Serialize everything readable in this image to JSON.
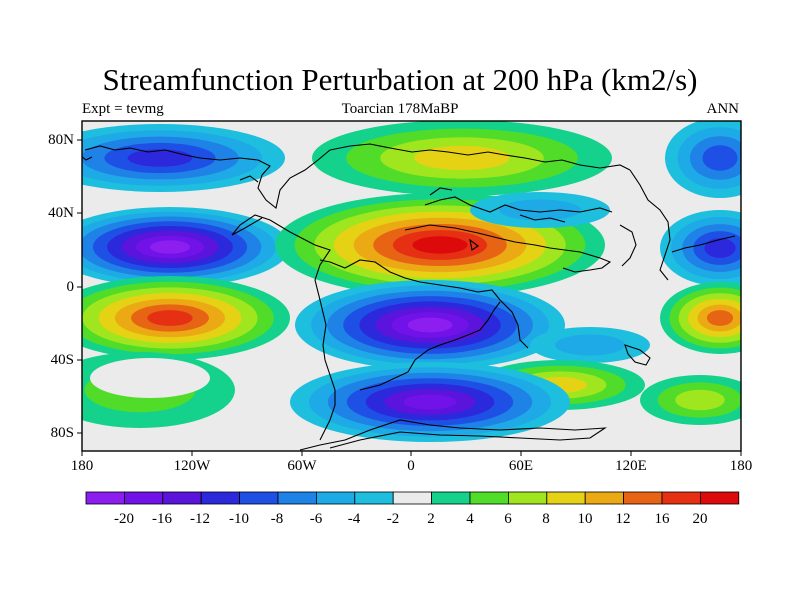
{
  "title": "Streamfunction Perturbation at 200 hPa (km2/s)",
  "subtitle_left": "Expt = tevmg",
  "subtitle_center": "Toarcian 178MaBP",
  "subtitle_right": "ANN",
  "y_tick_labels": [
    "80N",
    "40N",
    "0",
    "40S",
    "80S"
  ],
  "x_tick_labels": [
    "180",
    "120W",
    "60W",
    "0",
    "60E",
    "120E",
    "180"
  ],
  "colorbar_labels": [
    "-20",
    "-16",
    "-12",
    "-10",
    "-8",
    "-6",
    "-4",
    "-2",
    "2",
    "4",
    "6",
    "8",
    "10",
    "12",
    "16",
    "20"
  ],
  "colorbar_colors": [
    "#8c1ef0",
    "#7012e8",
    "#5a14dc",
    "#2c28dc",
    "#1e50e6",
    "#1e82e6",
    "#1eaae6",
    "#1ebede",
    "#ebebeb",
    "#14d28c",
    "#50dc28",
    "#a0e61e",
    "#e6d214",
    "#ebaa14",
    "#e66414",
    "#e63014",
    "#dc0a0a"
  ],
  "map_background_color": "#ebebeb"
}
